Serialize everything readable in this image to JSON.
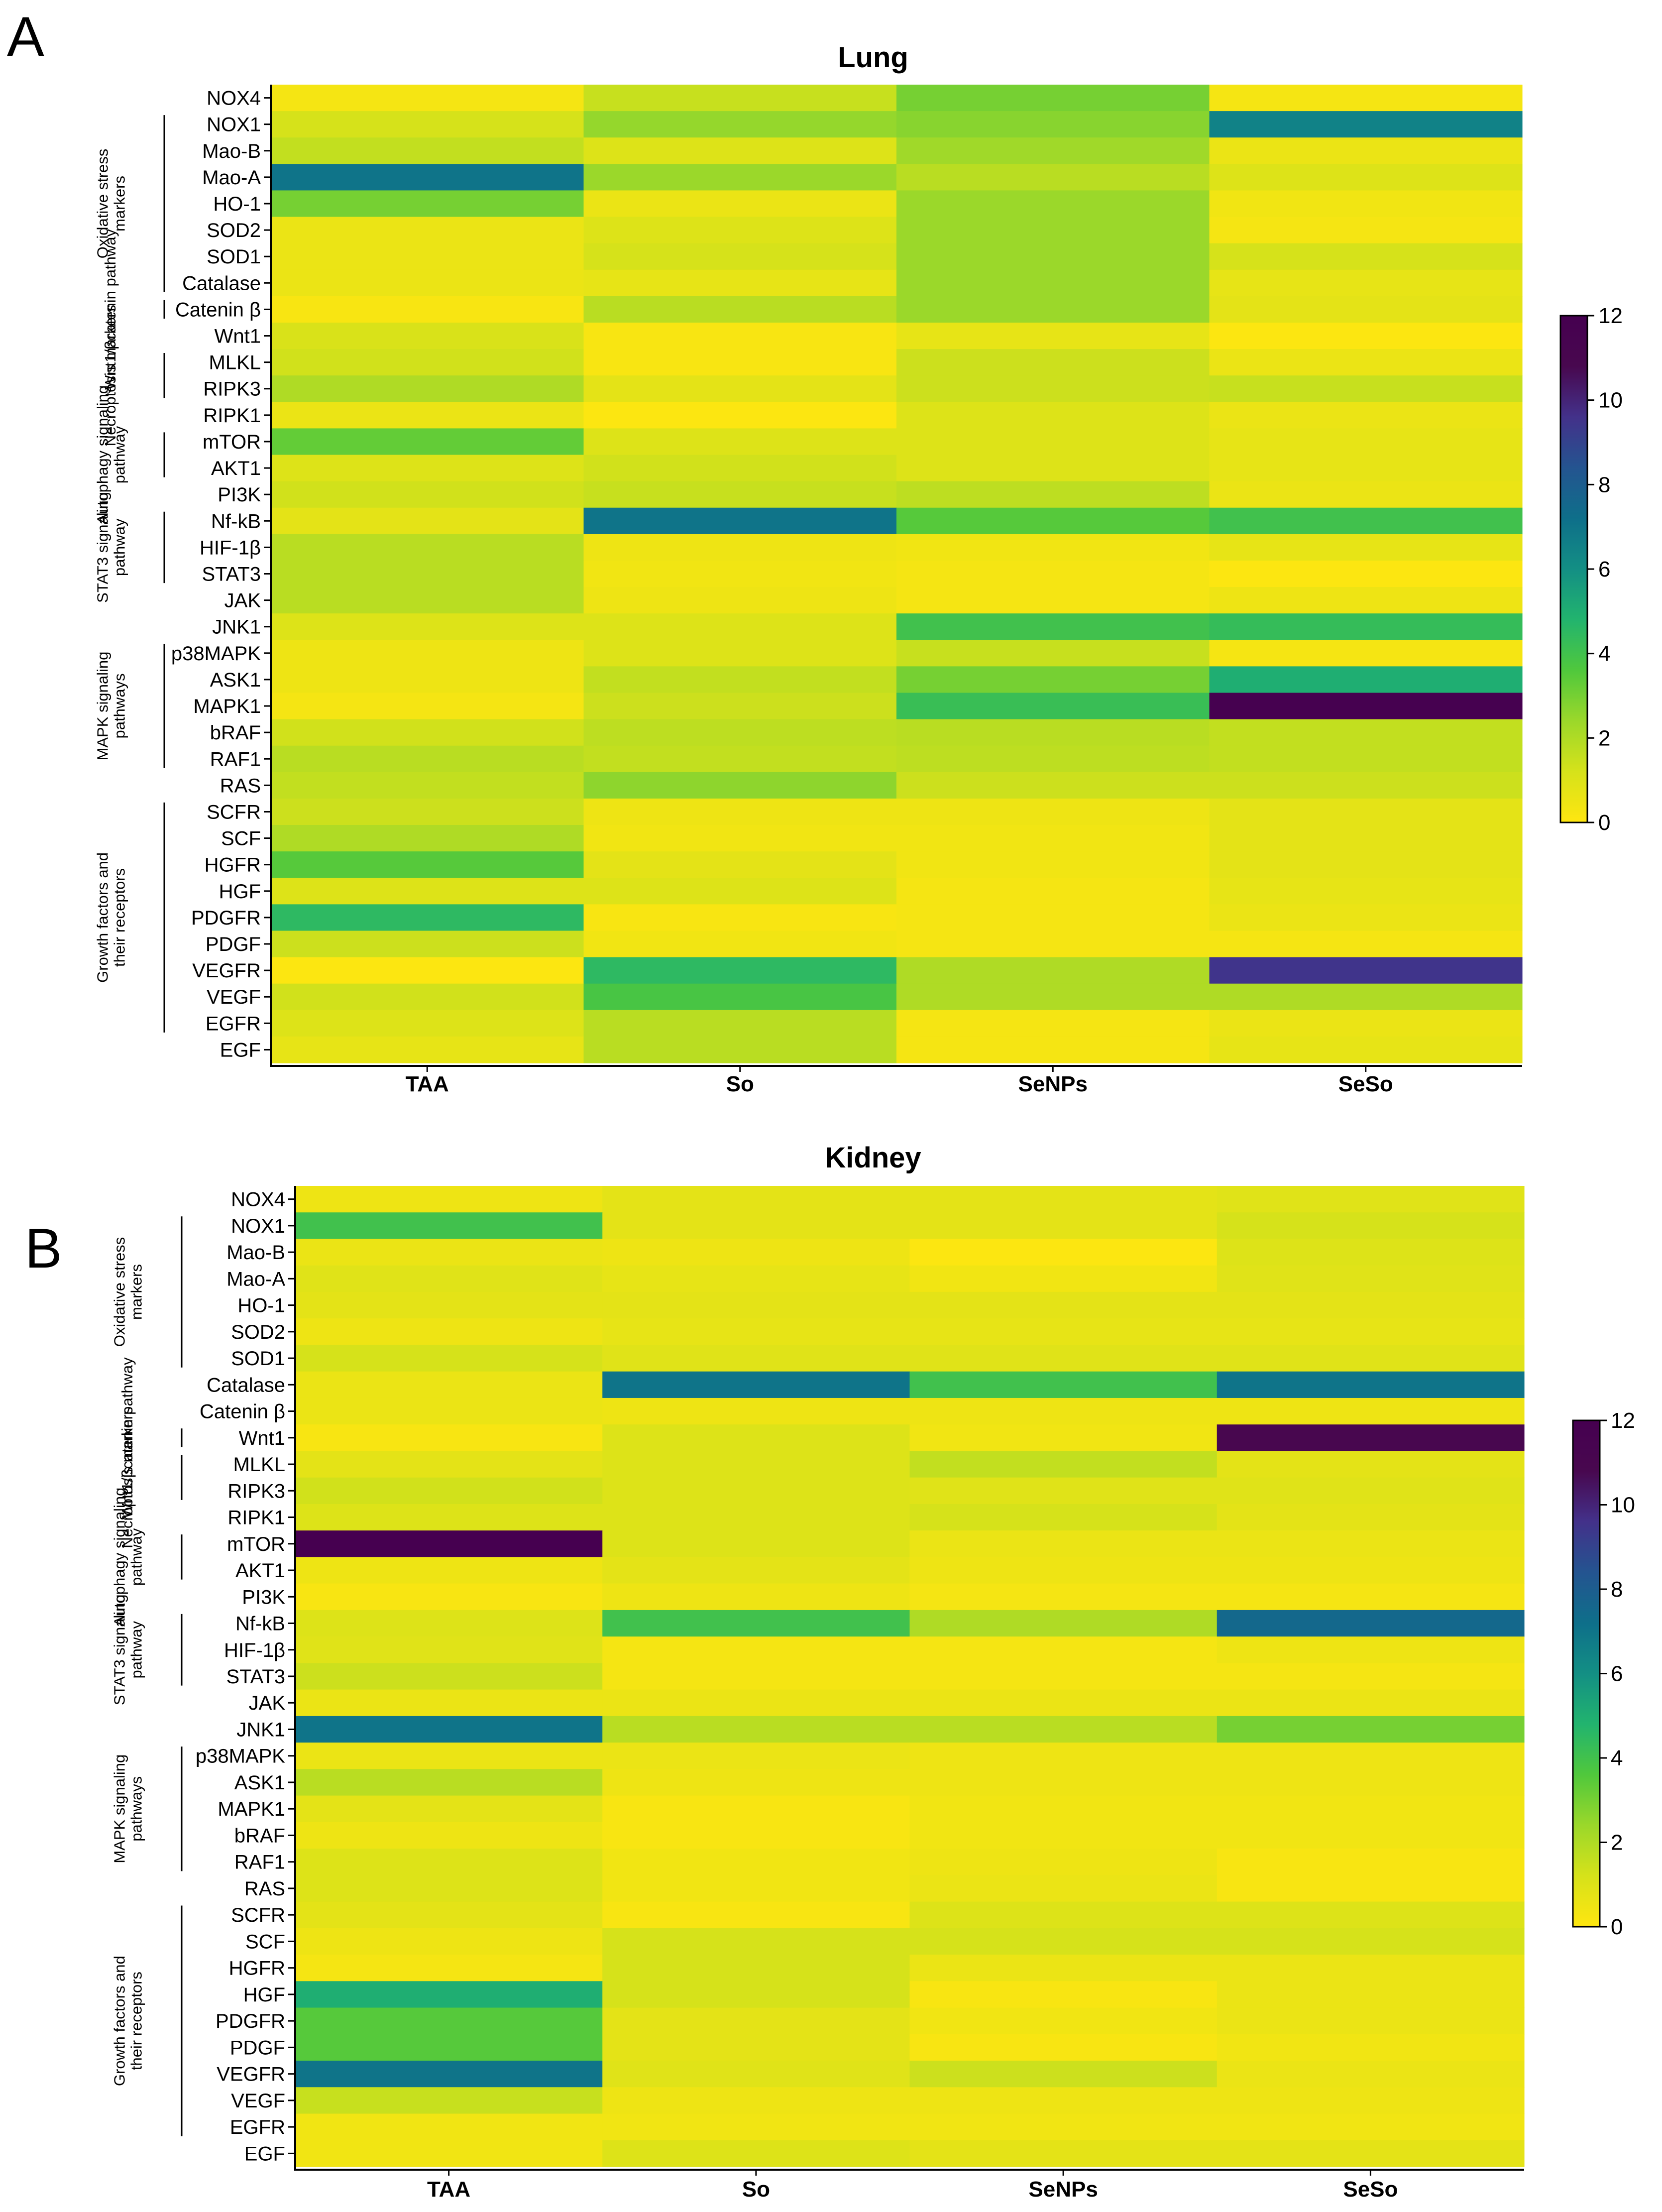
{
  "figure": {
    "panel_letters": [
      "A",
      "B"
    ]
  },
  "colors": {
    "colormap": [
      "#ffe610",
      "#d6e21a",
      "#9bd82a",
      "#50c83c",
      "#22b46e",
      "#138f84",
      "#0e6f8a",
      "#245490",
      "#43318a",
      "#48084f",
      "#460050"
    ],
    "axis": "#000000"
  },
  "chart_data": [
    {
      "type": "heatmap",
      "title": "Lung",
      "colorbar": {
        "min": 0,
        "max": 12,
        "ticks": [
          0,
          2,
          4,
          6,
          8,
          10,
          12
        ]
      },
      "columns": [
        "TAA",
        "So",
        "SeNPs",
        "SeSo"
      ],
      "rows": [
        "NOX4",
        "NOX1",
        "Mao-B",
        "Mao-A",
        "HO-1",
        "SOD2",
        "SOD1",
        "Catalase",
        "Catenin β",
        "Wnt1",
        "MLKL",
        "RIPK3",
        "RIPK1",
        "mTOR",
        "AKT1",
        "PI3K",
        "Nf-kB",
        "HIF-1β",
        "STAT3",
        "JAK",
        "JNK1",
        "p38MAPK",
        "ASK1",
        "MAPK1",
        "bRAF",
        "RAF1",
        "RAS",
        "SCFR",
        "SCF",
        "HGFR",
        "HGF",
        "PDGFR",
        "PDGF",
        "VEGFR",
        "VEGF",
        "EGFR",
        "EGF"
      ],
      "groups": [
        {
          "label": "Oxidative stress markers",
          "from": "NOX1",
          "to": "Catalase"
        },
        {
          "label": "Wnt1/βcatenin pathway",
          "from": "Catenin β",
          "to": "Catenin β"
        },
        {
          "label": "Necroptosis markers",
          "from": "MLKL",
          "to": "RIPK3"
        },
        {
          "label": "Autophagy signaling pathway",
          "from": "mTOR",
          "to": "AKT1"
        },
        {
          "label": "STAT3 signaling pathway",
          "from": "Nf-kB",
          "to": "STAT3"
        },
        {
          "label": "MAPK signaling pathways",
          "from": "p38MAPK",
          "to": "RAF1"
        },
        {
          "label": "Growth factors and their receptors",
          "from": "SCFR",
          "to": "EGFR"
        }
      ],
      "values": [
        [
          0.3,
          1.5,
          3.0,
          0.3
        ],
        [
          1.2,
          2.5,
          2.7,
          6.5
        ],
        [
          1.6,
          1.0,
          2.3,
          0.6
        ],
        [
          7.0,
          2.4,
          1.8,
          1.0
        ],
        [
          3.0,
          0.6,
          2.4,
          0.4
        ],
        [
          0.6,
          1.0,
          2.4,
          0.3
        ],
        [
          0.6,
          1.2,
          2.4,
          1.2
        ],
        [
          0.6,
          0.7,
          2.4,
          0.7
        ],
        [
          0.2,
          1.8,
          2.4,
          0.8
        ],
        [
          1.1,
          0.2,
          0.7,
          0.1
        ],
        [
          1.3,
          0.2,
          1.4,
          0.6
        ],
        [
          2.0,
          0.8,
          1.4,
          1.5
        ],
        [
          0.6,
          0.1,
          1.0,
          0.6
        ],
        [
          3.3,
          1.0,
          1.0,
          0.7
        ],
        [
          1.0,
          1.3,
          1.0,
          0.7
        ],
        [
          1.3,
          1.5,
          1.7,
          0.6
        ],
        [
          0.8,
          7.0,
          3.5,
          4.0
        ],
        [
          1.8,
          0.5,
          0.4,
          0.7
        ],
        [
          1.8,
          0.4,
          0.3,
          0.1
        ],
        [
          1.8,
          0.5,
          0.3,
          0.5
        ],
        [
          1.0,
          1.0,
          4.0,
          4.3
        ],
        [
          0.5,
          1.0,
          1.5,
          0.3
        ],
        [
          0.5,
          1.6,
          3.0,
          5.0
        ],
        [
          0.3,
          1.4,
          4.2,
          11.8
        ],
        [
          1.3,
          1.7,
          1.8,
          1.6
        ],
        [
          1.8,
          1.6,
          1.7,
          1.6
        ],
        [
          1.6,
          2.6,
          1.4,
          1.4
        ],
        [
          1.4,
          0.5,
          0.5,
          0.8
        ],
        [
          2.0,
          0.4,
          0.4,
          0.8
        ],
        [
          3.5,
          0.8,
          0.4,
          0.8
        ],
        [
          1.0,
          1.0,
          0.3,
          0.7
        ],
        [
          4.5,
          0.2,
          0.3,
          0.6
        ],
        [
          1.4,
          0.4,
          0.3,
          0.3
        ],
        [
          0.1,
          4.5,
          2.0,
          9.5
        ],
        [
          1.3,
          3.8,
          2.0,
          2.0
        ],
        [
          1.0,
          1.8,
          0.3,
          0.6
        ],
        [
          0.7,
          1.8,
          0.3,
          0.7
        ]
      ]
    },
    {
      "type": "heatmap",
      "title": "Kidney",
      "colorbar": {
        "min": 0,
        "max": 12,
        "ticks": [
          0,
          2,
          4,
          6,
          8,
          10,
          12
        ]
      },
      "columns": [
        "TAA",
        "So",
        "SeNPs",
        "SeSo"
      ],
      "rows": [
        "NOX4",
        "NOX1",
        "Mao-B",
        "Mao-A",
        "HO-1",
        "SOD2",
        "SOD1",
        "Catalase",
        "Catenin β",
        "Wnt1",
        "MLKL",
        "RIPK3",
        "RIPK1",
        "mTOR",
        "AKT1",
        "PI3K",
        "Nf-kB",
        "HIF-1β",
        "STAT3",
        "JAK",
        "JNK1",
        "p38MAPK",
        "ASK1",
        "MAPK1",
        "bRAF",
        "RAF1",
        "RAS",
        "SCFR",
        "SCF",
        "HGFR",
        "HGF",
        "PDGFR",
        "PDGF",
        "VEGFR",
        "VEGF",
        "EGFR",
        "EGF"
      ],
      "groups": [
        {
          "label": "Oxidative stress markers",
          "from": "NOX1",
          "to": "SOD1"
        },
        {
          "label": "Wnt1/βcatenin pathway",
          "from": "Wnt1",
          "to": "Wnt1"
        },
        {
          "label": "Necroptosis markers",
          "from": "MLKL",
          "to": "RIPK3"
        },
        {
          "label": "Autophagy signaling pathway",
          "from": "mTOR",
          "to": "AKT1"
        },
        {
          "label": "STAT3 signaling pathway",
          "from": "Nf-kB",
          "to": "STAT3"
        },
        {
          "label": "MAPK signaling pathways",
          "from": "p38MAPK",
          "to": "RAF1"
        },
        {
          "label": "Growth factors and their receptors",
          "from": "SCFR",
          "to": "EGFR"
        }
      ],
      "values": [
        [
          0.5,
          0.8,
          0.8,
          0.9
        ],
        [
          4.0,
          0.8,
          0.8,
          1.2
        ],
        [
          0.6,
          0.5,
          0.1,
          1.0
        ],
        [
          0.9,
          0.7,
          0.4,
          0.9
        ],
        [
          0.8,
          0.8,
          0.8,
          0.8
        ],
        [
          0.5,
          0.7,
          0.7,
          0.7
        ],
        [
          1.2,
          0.9,
          0.9,
          0.9
        ],
        [
          0.6,
          7.0,
          4.0,
          7.0
        ],
        [
          0.6,
          0.5,
          0.5,
          0.5
        ],
        [
          0.2,
          1.0,
          0.4,
          11.0
        ],
        [
          0.8,
          1.0,
          1.6,
          0.8
        ],
        [
          1.3,
          1.0,
          0.9,
          0.9
        ],
        [
          1.0,
          1.0,
          1.2,
          0.8
        ],
        [
          12.0,
          1.0,
          0.6,
          0.6
        ],
        [
          0.5,
          0.8,
          0.5,
          0.5
        ],
        [
          0.2,
          0.5,
          0.3,
          0.3
        ],
        [
          1.0,
          4.0,
          2.0,
          7.5
        ],
        [
          0.9,
          0.3,
          0.3,
          0.5
        ],
        [
          1.4,
          0.3,
          0.3,
          0.3
        ],
        [
          0.6,
          0.6,
          0.6,
          0.6
        ],
        [
          7.0,
          1.8,
          1.8,
          3.0
        ],
        [
          0.6,
          0.6,
          0.5,
          0.5
        ],
        [
          1.8,
          0.5,
          0.5,
          0.5
        ],
        [
          0.8,
          0.2,
          0.4,
          0.4
        ],
        [
          0.5,
          0.2,
          0.4,
          0.4
        ],
        [
          1.0,
          0.4,
          0.5,
          0.2
        ],
        [
          1.0,
          0.4,
          0.6,
          0.2
        ],
        [
          0.8,
          0.2,
          1.0,
          1.0
        ],
        [
          0.5,
          1.2,
          1.2,
          1.2
        ],
        [
          0.3,
          1.2,
          0.6,
          0.6
        ],
        [
          5.0,
          1.2,
          0.2,
          0.6
        ],
        [
          3.5,
          0.8,
          0.4,
          0.6
        ],
        [
          3.5,
          0.8,
          0.2,
          0.4
        ],
        [
          7.0,
          0.9,
          1.4,
          0.6
        ],
        [
          1.5,
          0.5,
          0.5,
          0.5
        ],
        [
          0.4,
          0.4,
          0.4,
          0.4
        ],
        [
          0.4,
          1.0,
          0.8,
          0.8
        ]
      ]
    }
  ]
}
